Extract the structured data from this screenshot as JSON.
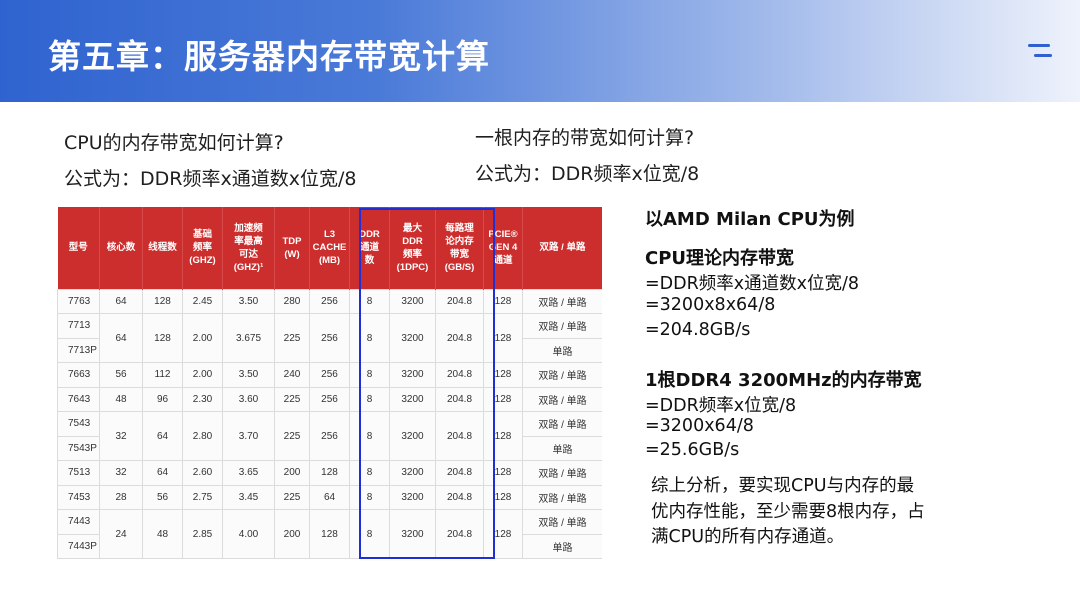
{
  "header": {
    "title": "第五章：服务器内存带宽计算"
  },
  "left": {
    "question": "CPU的内存带宽如何计算?",
    "formula": "公式为：DDR频率x通道数x位宽/8"
  },
  "top_right": {
    "question": "一根内存的带宽如何计算?",
    "formula": "公式为：DDR频率x位宽/8"
  },
  "table": {
    "headers": [
      "型号",
      "核心数",
      "线程数",
      "基础\n频率\n(GHZ)",
      "加速频\n率最高\n可达\n(GHZ)¹",
      "TDP\n(W)",
      "L3\nCACHE\n(MB)",
      "DDR\n通道\n数",
      "最大\nDDR\n频率\n(1DPC)",
      "每路理\n论内存\n带宽\n(GB/S)",
      "PCIE®\nGEN 4\n通道",
      "双路 / 单路"
    ],
    "rows": [
      [
        "7763",
        "64",
        "128",
        "2.45",
        "3.50",
        "280",
        "256",
        "8",
        "3200",
        "204.8",
        "128",
        "双路 / 单路"
      ],
      [
        "7713",
        "64",
        "128",
        "2.00",
        "3.675",
        "225",
        "256",
        "8",
        "3200",
        "204.8",
        "128",
        "双路 / 单路"
      ],
      [
        "7713P",
        "",
        "",
        "",
        "",
        "",
        "",
        "",
        "",
        "",
        "",
        "单路"
      ],
      [
        "7663",
        "56",
        "112",
        "2.00",
        "3.50",
        "240",
        "256",
        "8",
        "3200",
        "204.8",
        "128",
        "双路 / 单路"
      ],
      [
        "7643",
        "48",
        "96",
        "2.30",
        "3.60",
        "225",
        "256",
        "8",
        "3200",
        "204.8",
        "128",
        "双路 / 单路"
      ],
      [
        "7543",
        "32",
        "64",
        "2.80",
        "3.70",
        "225",
        "256",
        "8",
        "3200",
        "204.8",
        "128",
        "双路 / 单路"
      ],
      [
        "7543P",
        "",
        "",
        "",
        "",
        "",
        "",
        "",
        "",
        "",
        "",
        "单路"
      ],
      [
        "7513",
        "32",
        "64",
        "2.60",
        "3.65",
        "200",
        "128",
        "8",
        "3200",
        "204.8",
        "128",
        "双路 / 单路"
      ],
      [
        "7453",
        "28",
        "56",
        "2.75",
        "3.45",
        "225",
        "64",
        "8",
        "3200",
        "204.8",
        "128",
        "双路 / 单路"
      ],
      [
        "7443",
        "24",
        "48",
        "2.85",
        "4.00",
        "200",
        "128",
        "8",
        "3200",
        "204.8",
        "128",
        "双路 / 单路"
      ],
      [
        "7443P",
        "",
        "",
        "",
        "",
        "",
        "",
        "",
        "",
        "",
        "",
        "单路"
      ]
    ]
  },
  "right": {
    "example_title": "以AMD Milan CPU为例",
    "cpu_title": "CPU理论内存带宽",
    "cpu_lines": [
      "=DDR频率x通道数x位宽/8",
      "=3200x8x64/8",
      "=204.8GB/s"
    ],
    "dimm_title": "1根DDR4 3200MHz的内存带宽",
    "dimm_lines": [
      "=DDR频率x位宽/8",
      "=3200x64/8",
      "=25.6GB/s"
    ],
    "summary": [
      "综上分析，要实现CPU与内存的最",
      "优内存性能，至少需要8根内存，占",
      "满CPU的所有内存通道。"
    ]
  },
  "colors": {
    "header_blue": "#2f63cf",
    "table_header_red": "#cc2e2e",
    "highlight_box": "#1f2fd6"
  }
}
